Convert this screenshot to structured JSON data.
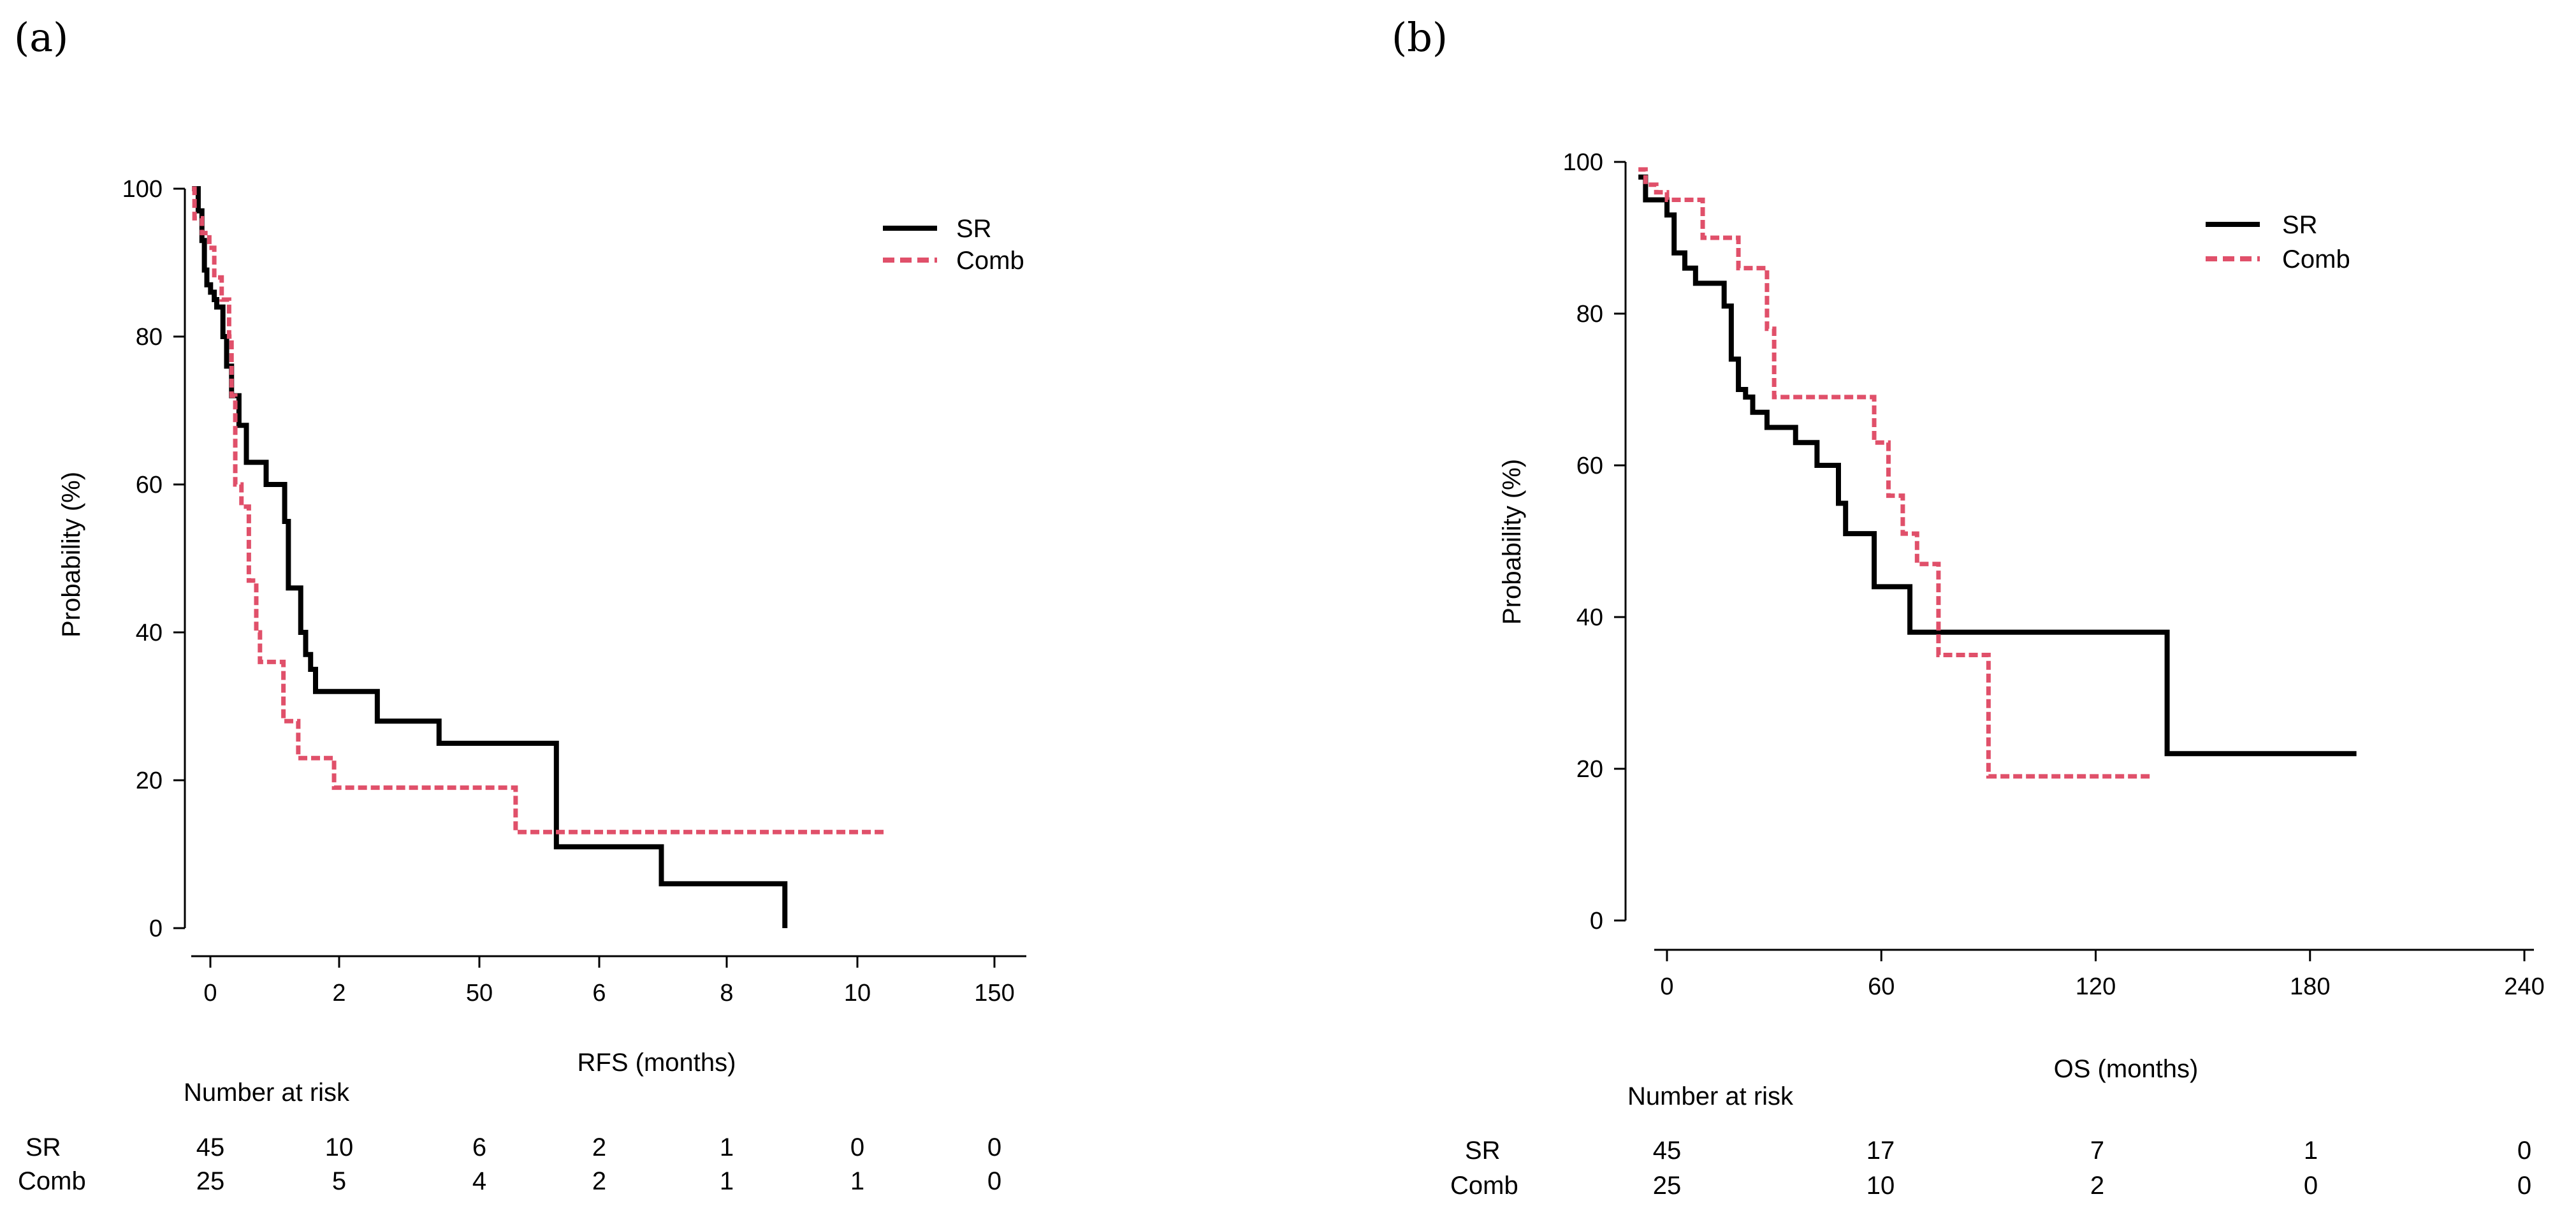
{
  "colors": {
    "sr": "#000000",
    "comb": "#e0506a",
    "axis": "#000000"
  },
  "chart_data": [
    {
      "type": "line",
      "panel_label": "(a)",
      "xlabel": "RFS (months)",
      "ylabel": "Probability (%)",
      "ylim": [
        0,
        100
      ],
      "yticks": [
        0,
        20,
        40,
        60,
        80,
        100
      ],
      "xtick_labels": [
        "0",
        "2",
        "50",
        "6",
        "8",
        "10",
        "150"
      ],
      "xlim": [
        -0.4,
        6.4
      ],
      "legend": [
        "SR",
        "Comb"
      ],
      "legend_position": "top-right",
      "series": [
        {
          "name": "SR",
          "style": "solid",
          "x": [
            -0.2,
            -0.15,
            -0.12,
            -0.1,
            -0.08,
            -0.05,
            -0.02,
            0.0,
            0.05,
            0.08,
            0.12,
            0.18,
            0.24,
            0.32,
            0.4,
            0.55,
            0.58,
            0.62,
            0.68,
            0.72,
            0.76,
            0.8,
            1.3,
            1.8,
            2.75,
            3.6,
            4.5,
            4.6
          ],
          "y": [
            100,
            97,
            93,
            89,
            87,
            86,
            85,
            84,
            80,
            76,
            72,
            68,
            63,
            63,
            60,
            55,
            46,
            46,
            40,
            37,
            35,
            32,
            28,
            25,
            11,
            6,
            6,
            0
          ]
        },
        {
          "name": "Comb",
          "style": "dashed",
          "x": [
            -0.2,
            -0.18,
            -0.12,
            -0.06,
            -0.02,
            0.04,
            0.1,
            0.12,
            0.15,
            0.2,
            0.26,
            0.32,
            0.35,
            0.54,
            0.66,
            0.95,
            2.42,
            5.4
          ],
          "y": [
            100,
            96,
            94,
            92,
            88,
            85,
            80,
            72,
            60,
            57,
            47,
            40,
            36,
            28,
            23,
            19,
            13,
            13
          ]
        }
      ],
      "risk_table": {
        "title": "Number at risk",
        "rows": [
          {
            "name": "SR",
            "values": [
              "45",
              "10",
              "6",
              "2",
              "1",
              "0",
              "0"
            ]
          },
          {
            "name": "Comb",
            "values": [
              "25",
              "5",
              "4",
              "2",
              "1",
              "1",
              "0"
            ]
          }
        ]
      }
    },
    {
      "type": "line",
      "panel_label": "(b)",
      "xlabel": "OS (months)",
      "ylabel": "Probability (%)",
      "ylim": [
        0,
        100
      ],
      "yticks": [
        0,
        20,
        40,
        60,
        80,
        100
      ],
      "xticks": [
        0,
        60,
        120,
        180,
        240
      ],
      "xtick_labels": [
        "0",
        "60",
        "120",
        "180",
        "240"
      ],
      "xlim": [
        -8,
        240
      ],
      "legend": [
        "SR",
        "Comb"
      ],
      "legend_position": "top-right",
      "series": [
        {
          "name": "SR",
          "style": "solid",
          "x": [
            -8,
            -6,
            -3,
            0,
            2,
            5,
            8,
            10,
            16,
            18,
            20,
            22,
            24,
            28,
            36,
            42,
            48,
            50,
            52,
            58,
            68,
            140,
            193
          ],
          "y": [
            98,
            95,
            95,
            93,
            88,
            86,
            84,
            84,
            81,
            74,
            70,
            69,
            67,
            65,
            63,
            60,
            55,
            51,
            51,
            44,
            38,
            22,
            22
          ]
        },
        {
          "name": "Comb",
          "style": "dashed",
          "x": [
            -8,
            -6,
            -3,
            0,
            10,
            20,
            28,
            30,
            55,
            58,
            62,
            66,
            70,
            76,
            90,
            136
          ],
          "y": [
            99,
            97,
            96,
            95,
            90,
            86,
            78,
            69,
            69,
            63,
            56,
            51,
            47,
            35,
            19,
            19
          ]
        }
      ],
      "risk_table": {
        "title": "Number at risk",
        "rows": [
          {
            "name": "SR",
            "values": [
              "45",
              "17",
              "7",
              "1",
              "0"
            ]
          },
          {
            "name": "Comb",
            "values": [
              "25",
              "10",
              "2",
              "0",
              "0"
            ]
          }
        ]
      }
    }
  ]
}
